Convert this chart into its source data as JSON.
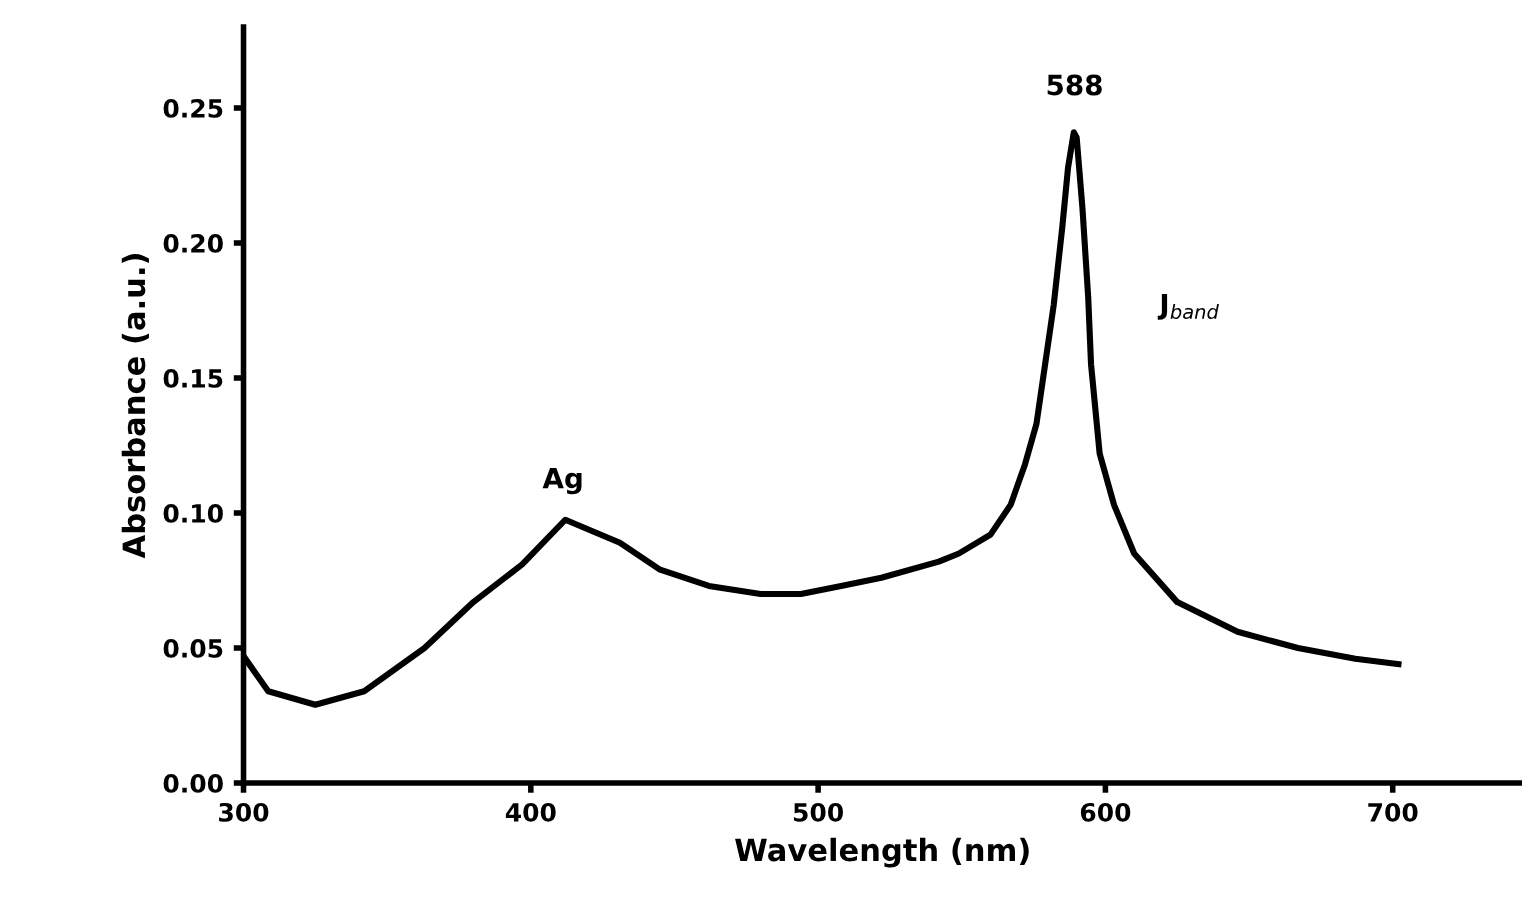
{
  "chart_data": {
    "type": "line",
    "xlabel": "Wavelength (nm)",
    "ylabel": "Absorbance (a.u.)",
    "xlim": [
      300,
      745
    ],
    "xticks": [
      300,
      400,
      500,
      600,
      700
    ],
    "ylim": [
      0,
      0.28
    ],
    "yticks": [
      {
        "value": 0,
        "label": "0.00"
      },
      {
        "value": 0.05,
        "label": "0.05"
      },
      {
        "value": 0.1,
        "label": "0.10"
      },
      {
        "value": 0.15,
        "label": "0.15"
      },
      {
        "value": 0.2,
        "label": "0.20"
      },
      {
        "value": 0.25,
        "label": "0.25"
      }
    ],
    "grid": false,
    "legend": false,
    "marker": "none",
    "line_style": "solid",
    "annotations": [
      "Ag",
      "588",
      "J$_{band}$"
    ],
    "series": [
      {
        "color": "#000000",
        "x": [
          300,
          308.6,
          325,
          342,
          363,
          380,
          397,
          412,
          431,
          445,
          462,
          480,
          494,
          508,
          522,
          542,
          549,
          560,
          567,
          572,
          576,
          579,
          582,
          585,
          587,
          589,
          590,
          592,
          594,
          595,
          598,
          603,
          610,
          625,
          646,
          667,
          687,
          702
        ],
        "values": [
          0.047,
          0.034,
          0.029,
          0.034,
          0.05,
          0.067,
          0.081,
          0.0975,
          0.089,
          0.079,
          0.073,
          0.07,
          0.07,
          0.073,
          0.076,
          0.082,
          0.085,
          0.092,
          0.103,
          0.118,
          0.133,
          0.155,
          0.177,
          0.206,
          0.228,
          0.241,
          0.239,
          0.213,
          0.18,
          0.155,
          0.122,
          0.103,
          0.085,
          0.067,
          0.056,
          0.05,
          0.046,
          0.044
        ]
      }
    ]
  }
}
